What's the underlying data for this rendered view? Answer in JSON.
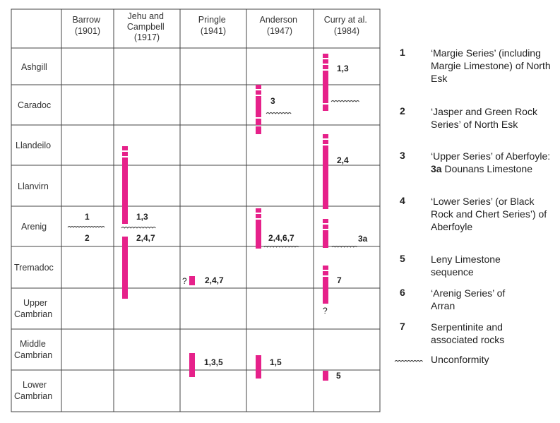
{
  "columns": [
    [
      "Barrow",
      "(1901)"
    ],
    [
      "Jehu and",
      "Campbell",
      "(1917)"
    ],
    [
      "Pringle",
      "(1941)"
    ],
    [
      "Anderson",
      "(1947)"
    ],
    [
      "Curry at al.",
      "(1984)"
    ]
  ],
  "stages": [
    [
      "Ashgill"
    ],
    [
      "Caradoc"
    ],
    [
      "Llandeilo"
    ],
    [
      "Llanvirn"
    ],
    [
      "Arenig"
    ],
    [
      "Tremadoc"
    ],
    [
      "Upper",
      "Cambrian"
    ],
    [
      "Middle",
      "Cambrian"
    ],
    [
      "Lower",
      "Cambrian"
    ]
  ],
  "annotations": {
    "barrow_upper": "1",
    "barrow_lower": "2",
    "jehu_upper": "1,3",
    "jehu_lower": "2,4,7",
    "pringle_query": "?",
    "pringle_trem": "2,4,7",
    "pringle_cam": "1,3,5",
    "anderson_caradoc": "3",
    "anderson_arenig": "2,4,6,7",
    "anderson_cam": "1,5",
    "curry_ashgill": "1,3",
    "curry_llanvirn": "2,4",
    "curry_arenig": "3a",
    "curry_trem": "7",
    "curry_query": "?",
    "curry_lower": "5"
  },
  "legend": [
    {
      "num": "1",
      "text": "‘Margie Series’ (including Margie Limestone) of North Esk"
    },
    {
      "num": "2",
      "text": "‘Jasper and Green Rock Series’ of North Esk"
    },
    {
      "num": "3",
      "text": "‘Upper Series’ of Aberfoyle:",
      "bold": "3a",
      "rest": " Dounans Limestone"
    },
    {
      "num": "4",
      "text": "‘Lower Series’ (or Black Rock and Chert Series’) of Aberfoyle"
    },
    {
      "num": "5",
      "text": "Leny Limestone sequence"
    },
    {
      "num": "6",
      "text": "‘Arenig Series’ of Arran"
    },
    {
      "num": "7",
      "text": "Serpentinite and associated rocks"
    },
    {
      "num": "",
      "text": "Unconformity"
    }
  ],
  "colors": {
    "bar": "#e6218a",
    "grid": "#444444"
  }
}
